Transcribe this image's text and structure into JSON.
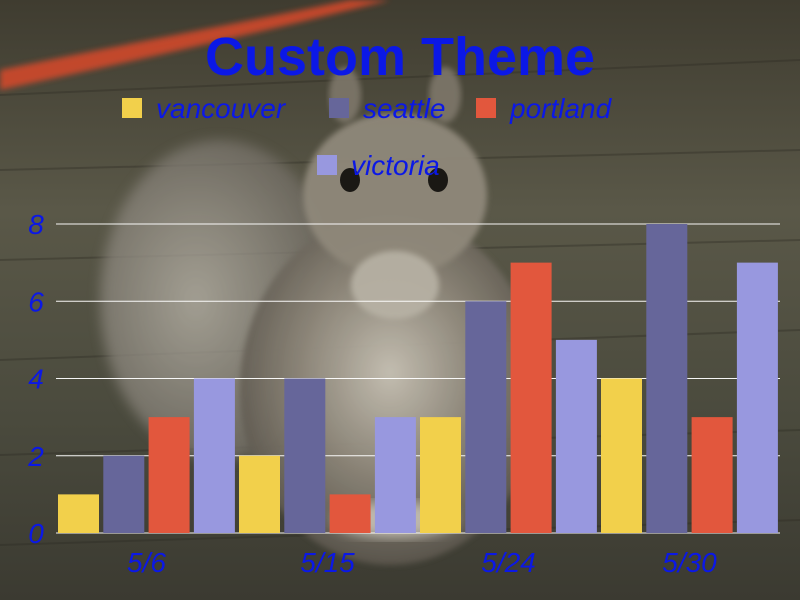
{
  "chart_data": {
    "type": "bar",
    "title": "Custom Theme",
    "categories": [
      "5/6",
      "5/15",
      "5/24",
      "5/30"
    ],
    "series": [
      {
        "name": "vancouver",
        "values": [
          1,
          2,
          3,
          4
        ],
        "color": "#f2d04b"
      },
      {
        "name": "seattle",
        "values": [
          2,
          4,
          6,
          8
        ],
        "color": "#66669a"
      },
      {
        "name": "portland",
        "values": [
          3,
          1,
          7,
          3
        ],
        "color": "#e2573d"
      },
      {
        "name": "victoria",
        "values": [
          4,
          3,
          5,
          7
        ],
        "color": "#9898df"
      }
    ],
    "ylim": [
      0,
      8
    ],
    "yticks": [
      0,
      2,
      4,
      6,
      8
    ],
    "grid": true,
    "legend_position": "top",
    "background": "photo of a squirrel on a wooden deck",
    "text_color": "#0b18e6"
  }
}
